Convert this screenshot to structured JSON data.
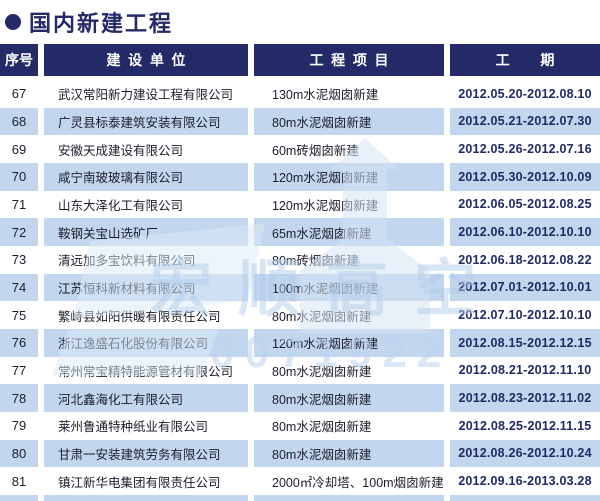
{
  "page": {
    "title": "国内新建工程",
    "bullet_icon": "circle-bullet"
  },
  "colors": {
    "navy": "#232a67",
    "row_alt_blue": "#c2d6ee",
    "white": "#ffffff"
  },
  "table": {
    "headers": {
      "no": "序号",
      "company": "建设单位",
      "project": "工程项目",
      "period": "工期"
    },
    "rows": [
      {
        "no": "67",
        "company": "武汉常阳新力建设工程有限公司",
        "project": "130m水泥烟囱新建",
        "period": "2012.05.20-2012.08.10"
      },
      {
        "no": "68",
        "company": "广灵县标泰建筑安装有限公司",
        "project": "80m水泥烟囱新建",
        "period": "2012.05.21-2012.07.30"
      },
      {
        "no": "69",
        "company": "安徽天成建设有限公司",
        "project": "60m砖烟囱新建",
        "period": "2012.05.26-2012.07.16"
      },
      {
        "no": "70",
        "company": "咸宁南玻玻璃有限公司",
        "project": "120m水泥烟囱新建",
        "period": "2012.05.30-2012.10.09"
      },
      {
        "no": "71",
        "company": "山东大泽化工有限公司",
        "project": "120m水泥烟囱新建",
        "period": "2012.06.05-2012.08.25"
      },
      {
        "no": "72",
        "company": "鞍钢关宝山选矿厂",
        "project": "65m水泥烟囱新建",
        "period": "2012.06.10-2012.10.10"
      },
      {
        "no": "73",
        "company": "清远加多宝饮料有限公司",
        "project": "80m砖烟囱新建",
        "period": "2012.06.18-2012.08.22"
      },
      {
        "no": "74",
        "company": "江苏恒科新材料有限公司",
        "project": "100m水泥烟囱新建",
        "period": "2012.07.01-2012.10.01"
      },
      {
        "no": "75",
        "company": "繁峙县如阳供暖有限责任公司",
        "project": "80m水泥烟囱新建",
        "period": "2012.07.10-2012.10.10"
      },
      {
        "no": "76",
        "company": "浙江逸盛石化股份有限公司",
        "project": "120m水泥烟囱新建",
        "period": "2012.08.15-2012.12.15"
      },
      {
        "no": "77",
        "company": "常州常宝精特能源管材有限公司",
        "project": "80m水泥烟囱新建",
        "period": "2012.08.21-2012.11.10"
      },
      {
        "no": "78",
        "company": "河北鑫海化工有限公司",
        "project": "80m水泥烟囱新建",
        "period": "2012.08.23-2012.11.02"
      },
      {
        "no": "79",
        "company": "莱州鲁通特种纸业有限公司",
        "project": "80m水泥烟囱新建",
        "period": "2012.08.25-2012.11.15"
      },
      {
        "no": "80",
        "company": "甘肃一安装建筑劳务有限公司",
        "project": "80m水泥烟囱新建",
        "period": "2012.08.26-2012.10.24"
      },
      {
        "no": "81",
        "company": "镇江新华电集团有限责任公司",
        "project": "2000㎡冷却塔、100m烟囱新建",
        "period": "2012.09.16-2013.03.28"
      }
    ]
  },
  "watermark": {
    "text": "宏顺高空",
    "digits": "0071922"
  }
}
